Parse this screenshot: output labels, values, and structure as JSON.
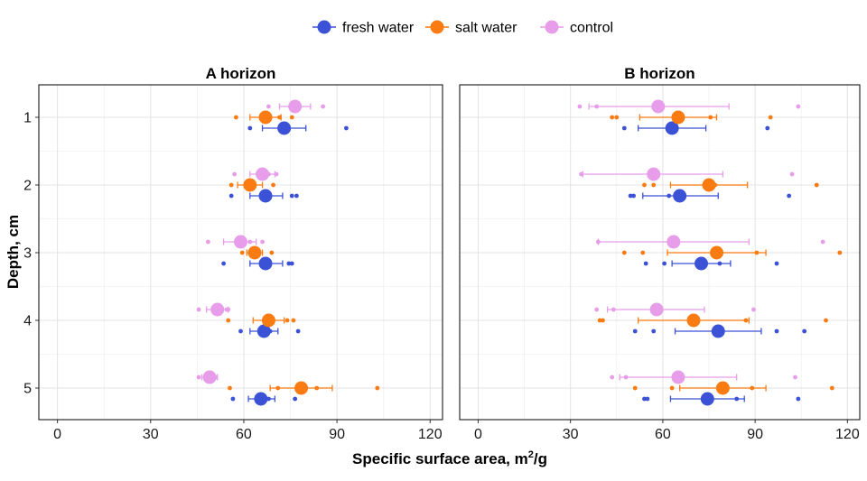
{
  "chart_data": {
    "type": "scatter",
    "subtype": "point-range dot plot, faceted",
    "xlabel": "Specific surface area, m",
    "xlabel_sup": "2",
    "xlabel_suffix": "/g",
    "ylabel": "Depth, cm",
    "xlim": [
      -6,
      124
    ],
    "xticks": [
      0,
      30,
      60,
      90,
      120
    ],
    "xtick_labels": [
      "0",
      "30",
      "60",
      "90",
      "120"
    ],
    "depth_levels": [
      1,
      2,
      3,
      4,
      5
    ],
    "depth_labels": [
      "1",
      "2",
      "3",
      "4",
      "5"
    ],
    "grid": true,
    "legend_position": "top-center",
    "legend": [
      {
        "key": "fresh",
        "label": "fresh water",
        "color": "#3B52D6"
      },
      {
        "key": "salt",
        "label": "salt water",
        "color": "#F97B12"
      },
      {
        "key": "control",
        "label": "control",
        "color": "#E79DEA"
      }
    ],
    "offsets": {
      "control": -0.16,
      "salt": 0,
      "fresh": 0.16
    },
    "facets": [
      {
        "title": "A horizon",
        "groups": [
          {
            "series": "fresh",
            "depth": 1,
            "mean": 73,
            "low": 66,
            "high": 80,
            "points": [
              62,
              72.5,
              93
            ]
          },
          {
            "series": "salt",
            "depth": 1,
            "mean": 67,
            "low": 62,
            "high": 72,
            "points": [
              57.5,
              71.5,
              75.5
            ]
          },
          {
            "series": "control",
            "depth": 1,
            "mean": 76.5,
            "low": 71.5,
            "high": 81.5,
            "points": [
              68,
              75,
              85.5
            ]
          },
          {
            "series": "fresh",
            "depth": 2,
            "mean": 67,
            "low": 62,
            "high": 72.5,
            "points": [
              56,
              75.5,
              77
            ]
          },
          {
            "series": "salt",
            "depth": 2,
            "mean": 62,
            "low": 58,
            "high": 66,
            "points": [
              56,
              62.5,
              69.5
            ]
          },
          {
            "series": "control",
            "depth": 2,
            "mean": 66,
            "low": 62,
            "high": 70,
            "points": [
              57,
              68,
              70.5
            ]
          },
          {
            "series": "fresh",
            "depth": 3,
            "mean": 67,
            "low": 62,
            "high": 72.5,
            "points": [
              53.5,
              74.5,
              75.5
            ]
          },
          {
            "series": "salt",
            "depth": 3,
            "mean": 63.5,
            "low": 61,
            "high": 66,
            "points": [
              59.5,
              64.5,
              69
            ]
          },
          {
            "series": "control",
            "depth": 3,
            "mean": 59,
            "low": 53.5,
            "high": 64,
            "points": [
              48.5,
              62,
              66
            ]
          },
          {
            "series": "fresh",
            "depth": 4,
            "mean": 66.5,
            "low": 62,
            "high": 71,
            "points": [
              59,
              68.5,
              77.5
            ]
          },
          {
            "series": "salt",
            "depth": 4,
            "mean": 68,
            "low": 63,
            "high": 73,
            "points": [
              55,
              74,
              76
            ]
          },
          {
            "series": "control",
            "depth": 4,
            "mean": 51.5,
            "low": 48,
            "high": 55,
            "points": [
              45.5,
              54.5,
              55
            ]
          },
          {
            "series": "fresh",
            "depth": 5,
            "mean": 65.5,
            "low": 61.5,
            "high": 70,
            "points": [
              56.5,
              68,
              76.5
            ]
          },
          {
            "series": "salt",
            "depth": 5,
            "mean": 78.5,
            "low": 68.5,
            "high": 88.5,
            "points": [
              55.5,
              71,
              83.5,
              103
            ]
          },
          {
            "series": "control",
            "depth": 5,
            "mean": 49,
            "low": 46.5,
            "high": 51.5,
            "points": [
              45.5,
              51
            ]
          }
        ]
      },
      {
        "title": "B horizon",
        "groups": [
          {
            "series": "fresh",
            "depth": 1,
            "mean": 63,
            "low": 52,
            "high": 74,
            "points": [
              47.5,
              94
            ]
          },
          {
            "series": "salt",
            "depth": 1,
            "mean": 65,
            "low": 52.5,
            "high": 77.5,
            "points": [
              43.5,
              45,
              75.5,
              95
            ]
          },
          {
            "series": "control",
            "depth": 1,
            "mean": 58.5,
            "low": 36,
            "high": 81.5,
            "points": [
              33,
              38.5,
              104
            ]
          },
          {
            "series": "fresh",
            "depth": 2,
            "mean": 65.5,
            "low": 53.5,
            "high": 78,
            "points": [
              49.5,
              50.5,
              62,
              101
            ]
          },
          {
            "series": "salt",
            "depth": 2,
            "mean": 75,
            "low": 62.5,
            "high": 87.5,
            "points": [
              54,
              57,
              77,
              110
            ]
          },
          {
            "series": "control",
            "depth": 2,
            "mean": 57,
            "low": 34,
            "high": 79.5,
            "points": [
              33.5,
              102
            ]
          },
          {
            "series": "fresh",
            "depth": 3,
            "mean": 72.5,
            "low": 63,
            "high": 82,
            "points": [
              54.5,
              60.5,
              78.5,
              97
            ]
          },
          {
            "series": "salt",
            "depth": 3,
            "mean": 77.5,
            "low": 61.5,
            "high": 93.5,
            "points": [
              47.5,
              53.5,
              90.5,
              117.5
            ]
          },
          {
            "series": "control",
            "depth": 3,
            "mean": 63.5,
            "low": 39,
            "high": 88,
            "points": [
              39,
              112
            ]
          },
          {
            "series": "fresh",
            "depth": 4,
            "mean": 78,
            "low": 64,
            "high": 92,
            "points": [
              51,
              57,
              97,
              106
            ]
          },
          {
            "series": "salt",
            "depth": 4,
            "mean": 70,
            "low": 52,
            "high": 88,
            "points": [
              39.5,
              40.5,
              87,
              113
            ]
          },
          {
            "series": "control",
            "depth": 4,
            "mean": 58,
            "low": 42,
            "high": 73.5,
            "points": [
              38.5,
              44,
              89.5
            ]
          },
          {
            "series": "fresh",
            "depth": 5,
            "mean": 74.5,
            "low": 62.5,
            "high": 86.5,
            "points": [
              54,
              55,
              84,
              104
            ]
          },
          {
            "series": "salt",
            "depth": 5,
            "mean": 79.5,
            "low": 65.5,
            "high": 93.5,
            "points": [
              51,
              63,
              89,
              115
            ]
          },
          {
            "series": "control",
            "depth": 5,
            "mean": 65,
            "low": 46,
            "high": 84,
            "points": [
              43.5,
              48,
              103
            ]
          }
        ]
      }
    ]
  }
}
